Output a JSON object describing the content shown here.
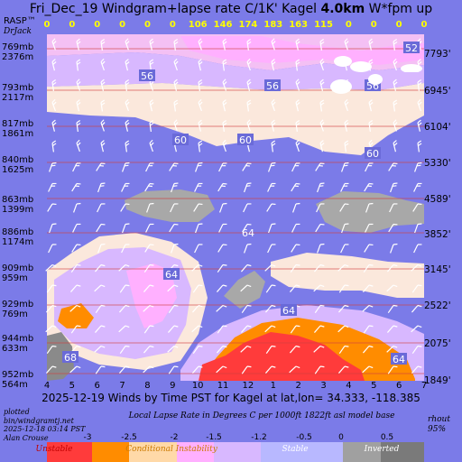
{
  "title": {
    "prefix": "Fri_Dec_19 Windgram+lapse rate C/1K'  Kagel ",
    "bold": "4.0km",
    "suffix": "  W*fpm up"
  },
  "rasp": {
    "name": "RASP™",
    "author": "DrJack"
  },
  "wstar_values": [
    "0",
    "0",
    "0",
    "0",
    "0",
    "0",
    "106",
    "146",
    "174",
    "183",
    "163",
    "115",
    "0",
    "0",
    "0",
    "0"
  ],
  "pressure_levels": [
    {
      "mb": "769mb",
      "m": "2376m"
    },
    {
      "mb": "793mb",
      "m": "2117m"
    },
    {
      "mb": "817mb",
      "m": "1861m"
    },
    {
      "mb": "840mb",
      "m": "1625m"
    },
    {
      "mb": "863mb",
      "m": "1399m"
    },
    {
      "mb": "886mb",
      "m": "1174m"
    },
    {
      "mb": "909mb",
      "m": "959m"
    },
    {
      "mb": "929mb",
      "m": "769m"
    },
    {
      "mb": "944mb",
      "m": "633m"
    },
    {
      "mb": "952mb",
      "m": "564m"
    }
  ],
  "altitude_labels_ft": [
    "7793'",
    "6945'",
    "6104'",
    "5330'",
    "4589'",
    "3852'",
    "3145'",
    "2522'",
    "2075'",
    "1849'"
  ],
  "x_ticks": [
    "4",
    "5",
    "6",
    "7",
    "8",
    "9",
    "10",
    "11",
    "12",
    "1",
    "2",
    "3",
    "4",
    "5",
    "6",
    "7"
  ],
  "x_label": "2025-12-19 Winds by Time PST for Kagel at lat,lon= 34.333, -118.385",
  "credit": [
    "plotted",
    "bin/windgramtj.net",
    "2025-12-18 03:14 PST",
    "Alan Crouse"
  ],
  "lapse_title": "Local Lapse Rate in Degrees C per 1000ft   1822ft asl model base",
  "rhout": [
    "rhout",
    "95%"
  ],
  "scale_values": [
    "-3",
    "-2.5",
    "-2",
    "-1.5",
    "-1.2",
    "-0.5",
    "0",
    "0.5"
  ],
  "scale_labels": [
    "Unstable",
    "Conditional Instability",
    "Stable",
    "Inverted"
  ],
  "contour_labels": [
    "52",
    "56",
    "56",
    "56",
    "60",
    "60",
    "60",
    "64",
    "64",
    "64",
    "64",
    "68"
  ],
  "colors": {
    "background": "#7b7be8",
    "wstar_text": "#ffff00",
    "scale": [
      "#ff3b3b",
      "#ff8c00",
      "#ffd9a8",
      "#ffb0ff",
      "#d8b8ff",
      "#b8b8ff",
      "#a0a0a0",
      "#7a7a7a"
    ]
  },
  "chart_data": {
    "type": "heatmap",
    "title": "Fri_Dec_19 Windgram+lapse rate C/1K'  Kagel 4.0km  W*fpm up",
    "xlabel": "2025-12-19 Winds by Time PST for Kagel at lat,lon= 34.333, -118.385",
    "x_categories": [
      "4",
      "5",
      "6",
      "7",
      "8",
      "9",
      "10",
      "11",
      "12",
      "1",
      "2",
      "3",
      "4",
      "5",
      "6",
      "7"
    ],
    "y_levels_mb": [
      769,
      793,
      817,
      840,
      863,
      886,
      909,
      929,
      944,
      952
    ],
    "y_levels_m": [
      2376,
      2117,
      1861,
      1625,
      1399,
      1174,
      959,
      769,
      633,
      564
    ],
    "y_levels_ft": [
      7793,
      6945,
      6104,
      5330,
      4589,
      3852,
      3145,
      2522,
      2075,
      1849
    ],
    "wstar_fpm": [
      0,
      0,
      0,
      0,
      0,
      0,
      106,
      146,
      174,
      183,
      163,
      115,
      0,
      0,
      0,
      0
    ],
    "colorbar": {
      "values": [
        -3,
        -2.5,
        -2,
        -1.5,
        -1.2,
        -0.5,
        0,
        0.5
      ],
      "categories": [
        "Unstable",
        "Conditional Instability",
        "Stable",
        "Inverted"
      ]
    },
    "contour_labels": [
      52,
      56,
      56,
      56,
      60,
      60,
      60,
      64,
      64,
      64,
      64,
      68
    ]
  }
}
